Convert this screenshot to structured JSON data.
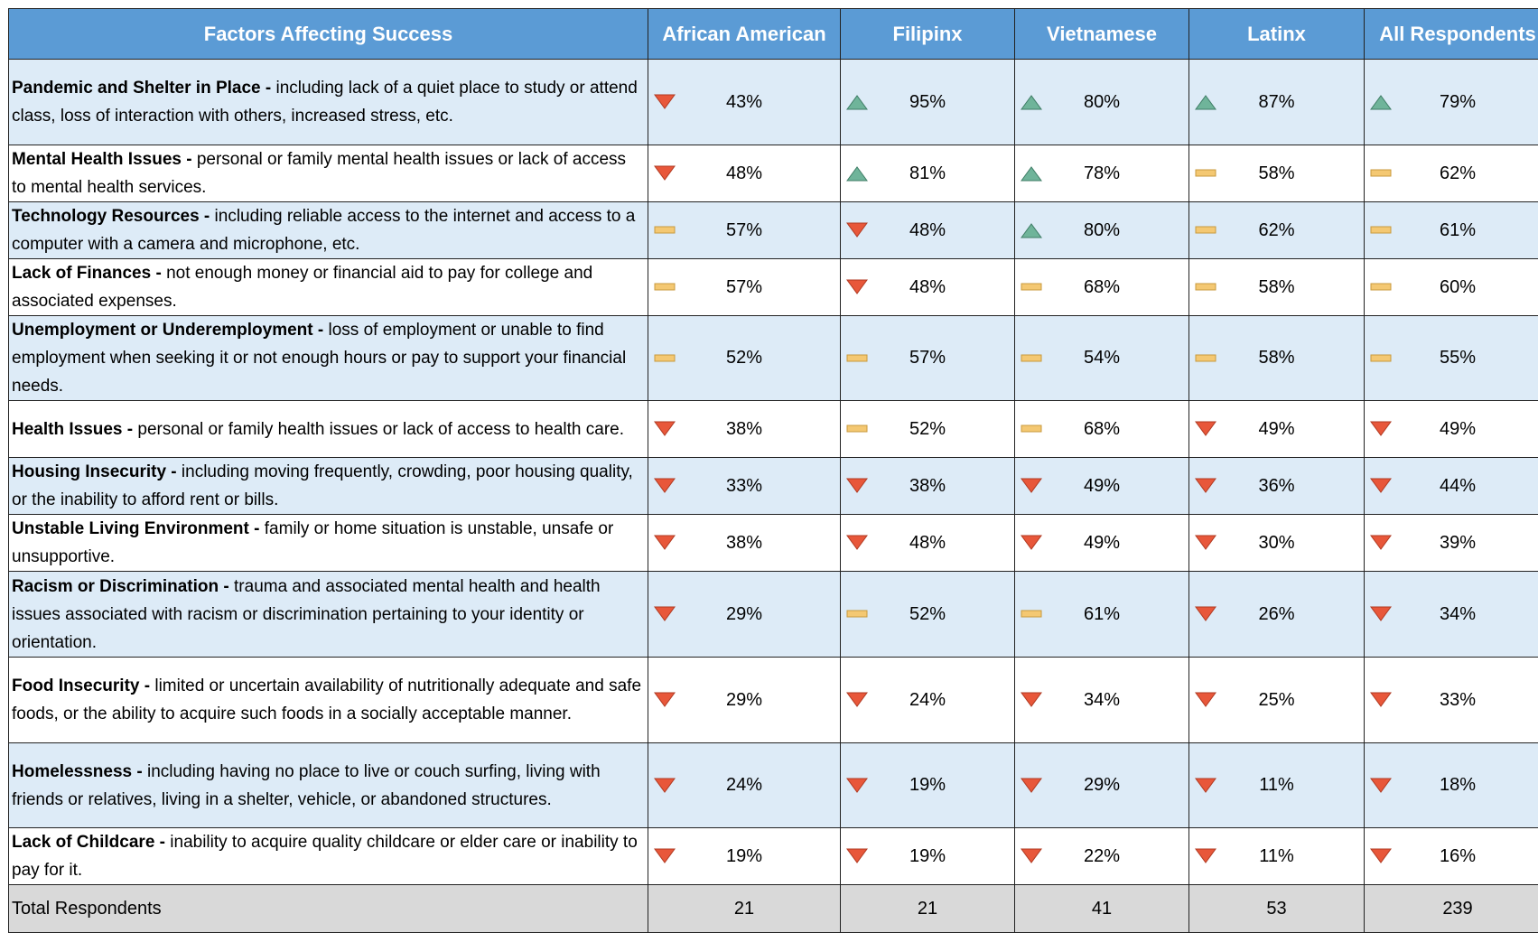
{
  "table": {
    "columns": [
      "Factors Affecting Success",
      "African American",
      "Filipinx",
      "Vietnamese",
      "Latinx",
      "All Respondents"
    ],
    "rows": [
      {
        "factor": "Pandemic and Shelter in Place -",
        "description": "including lack of a quiet place to study or attend class, loss of interaction with others, increased stress, etc.",
        "cells": [
          {
            "value": "43%",
            "icon": "down"
          },
          {
            "value": "95%",
            "icon": "up"
          },
          {
            "value": "80%",
            "icon": "up"
          },
          {
            "value": "87%",
            "icon": "up"
          },
          {
            "value": "79%",
            "icon": "up"
          }
        ]
      },
      {
        "factor": "Mental Health Issues -",
        "description": "personal or family mental health issues or lack of access to mental health services.",
        "cells": [
          {
            "value": "48%",
            "icon": "down"
          },
          {
            "value": "81%",
            "icon": "up"
          },
          {
            "value": "78%",
            "icon": "up"
          },
          {
            "value": "58%",
            "icon": "flat"
          },
          {
            "value": "62%",
            "icon": "flat"
          }
        ]
      },
      {
        "factor": "Technology Resources -",
        "description": "including reliable access to the internet and access to a computer with a camera and microphone, etc.",
        "cells": [
          {
            "value": "57%",
            "icon": "flat"
          },
          {
            "value": "48%",
            "icon": "down"
          },
          {
            "value": "80%",
            "icon": "up"
          },
          {
            "value": "62%",
            "icon": "flat"
          },
          {
            "value": "61%",
            "icon": "flat"
          }
        ]
      },
      {
        "factor": "Lack of Finances -",
        "description": "not enough money or financial aid to pay for college and associated expenses.",
        "cells": [
          {
            "value": "57%",
            "icon": "flat"
          },
          {
            "value": "48%",
            "icon": "down"
          },
          {
            "value": "68%",
            "icon": "flat"
          },
          {
            "value": "58%",
            "icon": "flat"
          },
          {
            "value": "60%",
            "icon": "flat"
          }
        ]
      },
      {
        "factor": "Unemployment or Underemployment -",
        "description": "loss of employment or unable to find employment when seeking it or not enough hours or pay to support your financial needs.",
        "cells": [
          {
            "value": "52%",
            "icon": "flat"
          },
          {
            "value": "57%",
            "icon": "flat"
          },
          {
            "value": "54%",
            "icon": "flat"
          },
          {
            "value": "58%",
            "icon": "flat"
          },
          {
            "value": "55%",
            "icon": "flat"
          }
        ]
      },
      {
        "factor": "Health Issues -",
        "description": "personal or family health issues or lack of access to health care.",
        "cells": [
          {
            "value": "38%",
            "icon": "down"
          },
          {
            "value": "52%",
            "icon": "flat"
          },
          {
            "value": "68%",
            "icon": "flat"
          },
          {
            "value": "49%",
            "icon": "down"
          },
          {
            "value": "49%",
            "icon": "down"
          }
        ]
      },
      {
        "factor": "Housing Insecurity -",
        "description": "including moving frequently, crowding, poor housing quality, or the inability to afford rent or bills.",
        "cells": [
          {
            "value": "33%",
            "icon": "down"
          },
          {
            "value": "38%",
            "icon": "down"
          },
          {
            "value": "49%",
            "icon": "down"
          },
          {
            "value": "36%",
            "icon": "down"
          },
          {
            "value": "44%",
            "icon": "down"
          }
        ]
      },
      {
        "factor": "Unstable Living Environment -",
        "description": "family or home situation is unstable, unsafe or unsupportive.",
        "cells": [
          {
            "value": "38%",
            "icon": "down"
          },
          {
            "value": "48%",
            "icon": "down"
          },
          {
            "value": "49%",
            "icon": "down"
          },
          {
            "value": "30%",
            "icon": "down"
          },
          {
            "value": "39%",
            "icon": "down"
          }
        ]
      },
      {
        "factor": "Racism or Discrimination -",
        "description": "trauma and associated mental health and health issues associated with racism or discrimination pertaining to your identity or orientation.",
        "cells": [
          {
            "value": "29%",
            "icon": "down"
          },
          {
            "value": "52%",
            "icon": "flat"
          },
          {
            "value": "61%",
            "icon": "flat"
          },
          {
            "value": "26%",
            "icon": "down"
          },
          {
            "value": "34%",
            "icon": "down"
          }
        ]
      },
      {
        "factor": "Food Insecurity -",
        "description": "limited or uncertain availability of nutritionally adequate and safe foods, or the ability to acquire such foods in a socially acceptable manner.",
        "cells": [
          {
            "value": "29%",
            "icon": "down"
          },
          {
            "value": "24%",
            "icon": "down"
          },
          {
            "value": "34%",
            "icon": "down"
          },
          {
            "value": "25%",
            "icon": "down"
          },
          {
            "value": "33%",
            "icon": "down"
          }
        ]
      },
      {
        "factor": "Homelessness -",
        "description": "including having no place to live or couch surfing, living with friends or relatives, living in a shelter, vehicle, or abandoned structures.",
        "cells": [
          {
            "value": "24%",
            "icon": "down"
          },
          {
            "value": "19%",
            "icon": "down"
          },
          {
            "value": "29%",
            "icon": "down"
          },
          {
            "value": "11%",
            "icon": "down"
          },
          {
            "value": "18%",
            "icon": "down"
          }
        ]
      },
      {
        "factor": "Lack of Childcare -",
        "description": "inability to acquire quality childcare or elder care or inability to pay for it.",
        "cells": [
          {
            "value": "19%",
            "icon": "down"
          },
          {
            "value": "19%",
            "icon": "down"
          },
          {
            "value": "22%",
            "icon": "down"
          },
          {
            "value": "11%",
            "icon": "down"
          },
          {
            "value": "16%",
            "icon": "down"
          }
        ]
      }
    ],
    "total": {
      "label": "Total Respondents",
      "cells": [
        "21",
        "21",
        "41",
        "53",
        "239"
      ]
    }
  }
}
